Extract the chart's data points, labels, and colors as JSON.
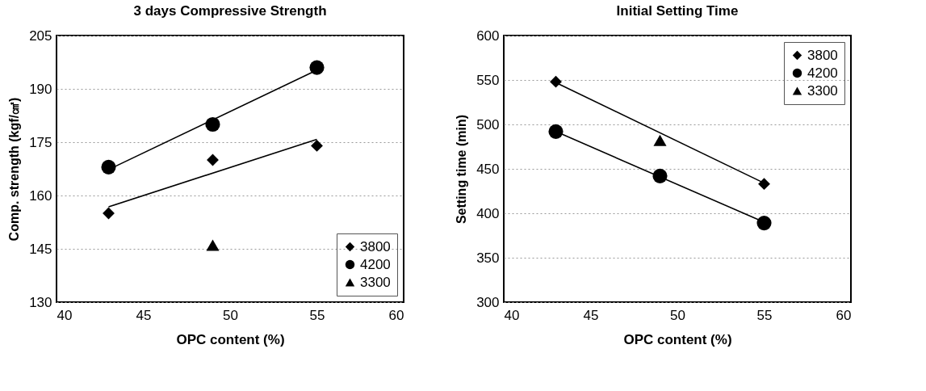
{
  "chart_data": [
    {
      "type": "scatter",
      "title": "3 days Compressive Strength",
      "xlabel": "OPC content (%)",
      "ylabel": "Comp. strength (kgf/㎠)",
      "xlim": [
        40,
        60
      ],
      "xticks": [
        40,
        45,
        50,
        55,
        60
      ],
      "ylim": [
        130,
        205
      ],
      "yticks": [
        130,
        145,
        160,
        175,
        190,
        205
      ],
      "grid": "y",
      "legend": "bottom right",
      "series": [
        {
          "type": "line",
          "color": "#000000",
          "x": [
            43,
            55
          ],
          "values": [
            156.8,
            175.8
          ],
          "marker": "none"
        },
        {
          "type": "line",
          "color": "#000000",
          "x": [
            43,
            55
          ],
          "values": [
            167.3,
            195.3
          ],
          "marker": "none"
        },
        {
          "name": "3800",
          "color": "#000000",
          "marker": "diamond",
          "x": [
            43,
            49,
            55
          ],
          "values": [
            155,
            170,
            174
          ]
        },
        {
          "name": "4200",
          "color": "#000000",
          "marker": "circle",
          "x": [
            43,
            49,
            55
          ],
          "values": [
            168,
            180,
            196
          ]
        },
        {
          "name": "3300",
          "color": "#000000",
          "marker": "triangle",
          "x": [
            49
          ],
          "values": [
            146
          ]
        }
      ]
    },
    {
      "type": "scatter",
      "title": "Initial Setting Time",
      "xlabel": "OPC content (%)",
      "ylabel": "Setting time (min)",
      "xlim": [
        40,
        60
      ],
      "xticks": [
        40,
        45,
        50,
        55,
        60
      ],
      "ylim": [
        300,
        600
      ],
      "yticks": [
        300,
        350,
        400,
        450,
        500,
        550,
        600
      ],
      "grid": "y",
      "legend": "top right",
      "series": [
        {
          "type": "line",
          "color": "#000000",
          "x": [
            43,
            55
          ],
          "values": [
            547,
            434
          ],
          "marker": "none"
        },
        {
          "type": "line",
          "color": "#000000",
          "x": [
            43,
            55
          ],
          "values": [
            492,
            390
          ],
          "marker": "none"
        },
        {
          "name": "3800",
          "color": "#000000",
          "marker": "diamond",
          "x": [
            43,
            49,
            55
          ],
          "values": [
            548,
            null,
            433
          ]
        },
        {
          "name": "4200",
          "color": "#000000",
          "marker": "circle",
          "x": [
            43,
            49,
            55
          ],
          "values": [
            492,
            442,
            389
          ]
        },
        {
          "name": "3300",
          "color": "#000000",
          "marker": "triangle",
          "x": [
            49
          ],
          "values": [
            482
          ]
        }
      ]
    }
  ]
}
